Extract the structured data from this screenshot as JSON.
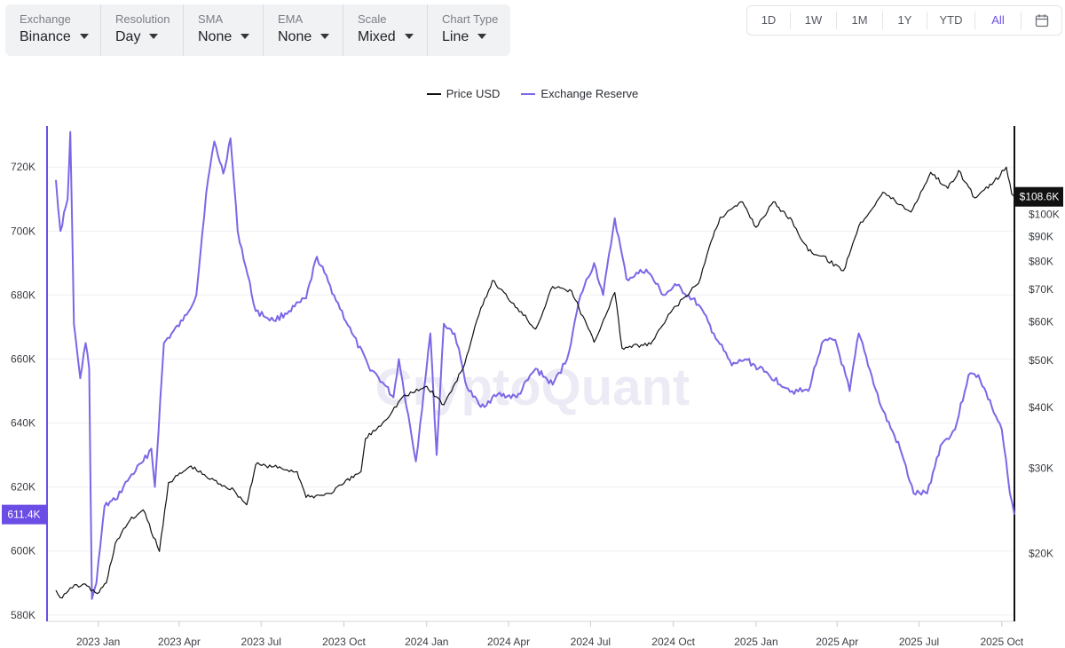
{
  "toolbar": {
    "dropdowns": [
      {
        "label": "Exchange",
        "value": "Binance"
      },
      {
        "label": "Resolution",
        "value": "Day"
      },
      {
        "label": "SMA",
        "value": "None"
      },
      {
        "label": "EMA",
        "value": "None"
      },
      {
        "label": "Scale",
        "value": "Mixed"
      },
      {
        "label": "Chart Type",
        "value": "Line"
      }
    ]
  },
  "range_buttons": [
    "1D",
    "1W",
    "1M",
    "1Y",
    "YTD",
    "All"
  ],
  "active_range": "All",
  "watermark": "CryptoQuant",
  "colors": {
    "price": "#111111",
    "reserve": "#7c67e6",
    "reserve_badge": "#6b4de6",
    "price_badge": "#111111"
  },
  "chart_data": {
    "type": "line",
    "title": "",
    "legend": {
      "position": "top-center"
    },
    "x_tick_labels": [
      "2023 Jan",
      "2023 Apr",
      "2023 Jul",
      "2023 Oct",
      "2024 Jan",
      "2024 Apr",
      "2024 Jul",
      "2024 Oct",
      "2025 Jan",
      "2025 Apr",
      "2025 Jul",
      "2025 Oct"
    ],
    "x_range": [
      "2022-11-15",
      "2025-10-15"
    ],
    "left_axis": {
      "series": "Exchange Reserve",
      "scale": "linear",
      "range": [
        578000,
        732000
      ],
      "ticks": [
        580000,
        600000,
        620000,
        640000,
        660000,
        680000,
        700000,
        720000
      ],
      "tick_labels": [
        "580K",
        "600K",
        "620K",
        "640K",
        "660K",
        "680K",
        "700K",
        "720K"
      ],
      "current_label": "611.4K",
      "current_value": 611400
    },
    "right_axis": {
      "series": "Price USD",
      "scale": "log",
      "range": [
        14500,
        150000
      ],
      "ticks": [
        20000,
        30000,
        40000,
        50000,
        60000,
        70000,
        80000,
        90000,
        100000
      ],
      "tick_labels": [
        "$20K",
        "$30K",
        "$40K",
        "$50K",
        "$60K",
        "$70K",
        "$80K",
        "$90K",
        "$100K"
      ],
      "current_label": "$108.6K",
      "current_value": 108600
    },
    "grid": true,
    "series": [
      {
        "name": "Price USD",
        "axis": "right",
        "points": [
          [
            "2022-11-15",
            16800
          ],
          [
            "2022-11-22",
            16200
          ],
          [
            "2022-12-01",
            17000
          ],
          [
            "2022-12-15",
            17300
          ],
          [
            "2022-12-31",
            16550
          ],
          [
            "2023-01-10",
            17400
          ],
          [
            "2023-01-20",
            21000
          ],
          [
            "2023-02-05",
            23400
          ],
          [
            "2023-02-20",
            24600
          ],
          [
            "2023-03-10",
            20200
          ],
          [
            "2023-03-20",
            28000
          ],
          [
            "2023-04-14",
            30300
          ],
          [
            "2023-05-01",
            28800
          ],
          [
            "2023-06-01",
            27000
          ],
          [
            "2023-06-15",
            25200
          ],
          [
            "2023-06-25",
            30500
          ],
          [
            "2023-07-15",
            30200
          ],
          [
            "2023-08-10",
            29500
          ],
          [
            "2023-08-20",
            26100
          ],
          [
            "2023-09-15",
            26600
          ],
          [
            "2023-10-01",
            27900
          ],
          [
            "2023-10-20",
            29500
          ],
          [
            "2023-10-25",
            34500
          ],
          [
            "2023-11-15",
            37500
          ],
          [
            "2023-12-05",
            42000
          ],
          [
            "2024-01-01",
            44200
          ],
          [
            "2024-01-20",
            40500
          ],
          [
            "2024-02-10",
            48000
          ],
          [
            "2024-02-28",
            62000
          ],
          [
            "2024-03-14",
            73000
          ],
          [
            "2024-04-15",
            63000
          ],
          [
            "2024-05-01",
            58000
          ],
          [
            "2024-05-20",
            71000
          ],
          [
            "2024-06-10",
            69500
          ],
          [
            "2024-07-05",
            54500
          ],
          [
            "2024-07-28",
            69000
          ],
          [
            "2024-08-05",
            53000
          ],
          [
            "2024-09-06",
            54000
          ],
          [
            "2024-09-30",
            63500
          ],
          [
            "2024-10-29",
            72000
          ],
          [
            "2024-11-12",
            88000
          ],
          [
            "2024-11-22",
            98500
          ],
          [
            "2024-12-17",
            106000
          ],
          [
            "2025-01-01",
            94000
          ],
          [
            "2025-01-20",
            106000
          ],
          [
            "2025-02-10",
            97000
          ],
          [
            "2025-02-28",
            84000
          ],
          [
            "2025-03-15",
            82000
          ],
          [
            "2025-04-08",
            76500
          ],
          [
            "2025-04-25",
            94500
          ],
          [
            "2025-05-22",
            111000
          ],
          [
            "2025-06-22",
            101000
          ],
          [
            "2025-07-14",
            122000
          ],
          [
            "2025-08-02",
            113000
          ],
          [
            "2025-08-14",
            123000
          ],
          [
            "2025-09-01",
            108000
          ],
          [
            "2025-09-20",
            115000
          ],
          [
            "2025-10-06",
            125000
          ],
          [
            "2025-10-12",
            110000
          ],
          [
            "2025-10-15",
            108600
          ]
        ]
      },
      {
        "name": "Exchange Reserve",
        "axis": "left",
        "points": [
          [
            "2022-11-15",
            716000
          ],
          [
            "2022-11-20",
            700000
          ],
          [
            "2022-11-28",
            710000
          ],
          [
            "2022-12-01",
            731000
          ],
          [
            "2022-12-05",
            671000
          ],
          [
            "2022-12-12",
            654000
          ],
          [
            "2022-12-18",
            665000
          ],
          [
            "2022-12-22",
            657000
          ],
          [
            "2022-12-25",
            585000
          ],
          [
            "2022-12-30",
            590000
          ],
          [
            "2023-01-08",
            614000
          ],
          [
            "2023-01-20",
            616000
          ],
          [
            "2023-02-05",
            623000
          ],
          [
            "2023-02-20",
            628000
          ],
          [
            "2023-03-01",
            632000
          ],
          [
            "2023-03-05",
            620000
          ],
          [
            "2023-03-15",
            665000
          ],
          [
            "2023-04-05",
            672000
          ],
          [
            "2023-04-20",
            680000
          ],
          [
            "2023-05-01",
            712000
          ],
          [
            "2023-05-10",
            728000
          ],
          [
            "2023-05-20",
            718000
          ],
          [
            "2023-05-28",
            729000
          ],
          [
            "2023-06-05",
            700000
          ],
          [
            "2023-06-25",
            675000
          ],
          [
            "2023-07-15",
            672000
          ],
          [
            "2023-08-01",
            675000
          ],
          [
            "2023-08-20",
            679000
          ],
          [
            "2023-09-01",
            692000
          ],
          [
            "2023-09-20",
            680000
          ],
          [
            "2023-10-10",
            668000
          ],
          [
            "2023-10-28",
            658000
          ],
          [
            "2023-11-15",
            652000
          ],
          [
            "2023-11-25",
            648000
          ],
          [
            "2023-12-01",
            660000
          ],
          [
            "2023-12-20",
            628000
          ],
          [
            "2024-01-05",
            668000
          ],
          [
            "2024-01-12",
            630000
          ],
          [
            "2024-01-20",
            671000
          ],
          [
            "2024-02-01",
            668000
          ],
          [
            "2024-02-15",
            651000
          ],
          [
            "2024-03-01",
            645000
          ],
          [
            "2024-03-20",
            649000
          ],
          [
            "2024-04-10",
            648000
          ],
          [
            "2024-05-01",
            657000
          ],
          [
            "2024-05-20",
            652000
          ],
          [
            "2024-06-05",
            660000
          ],
          [
            "2024-06-20",
            680000
          ],
          [
            "2024-07-05",
            690000
          ],
          [
            "2024-07-15",
            680000
          ],
          [
            "2024-07-28",
            704000
          ],
          [
            "2024-08-10",
            685000
          ],
          [
            "2024-09-01",
            688000
          ],
          [
            "2024-09-20",
            680000
          ],
          [
            "2024-10-05",
            683000
          ],
          [
            "2024-10-29",
            677000
          ],
          [
            "2024-11-15",
            668000
          ],
          [
            "2024-12-05",
            658000
          ],
          [
            "2024-12-20",
            660000
          ],
          [
            "2025-01-10",
            656000
          ],
          [
            "2025-02-10",
            650000
          ],
          [
            "2025-02-28",
            650000
          ],
          [
            "2025-03-15",
            665000
          ],
          [
            "2025-03-30",
            666000
          ],
          [
            "2025-04-15",
            650000
          ],
          [
            "2025-04-25",
            668000
          ],
          [
            "2025-05-20",
            645000
          ],
          [
            "2025-06-10",
            632000
          ],
          [
            "2025-06-25",
            618000
          ],
          [
            "2025-07-10",
            618000
          ],
          [
            "2025-07-25",
            633000
          ],
          [
            "2025-08-10",
            638000
          ],
          [
            "2025-08-25",
            655000
          ],
          [
            "2025-09-05",
            655000
          ],
          [
            "2025-09-20",
            645000
          ],
          [
            "2025-10-01",
            638000
          ],
          [
            "2025-10-10",
            618000
          ],
          [
            "2025-10-15",
            611400
          ]
        ]
      }
    ]
  }
}
